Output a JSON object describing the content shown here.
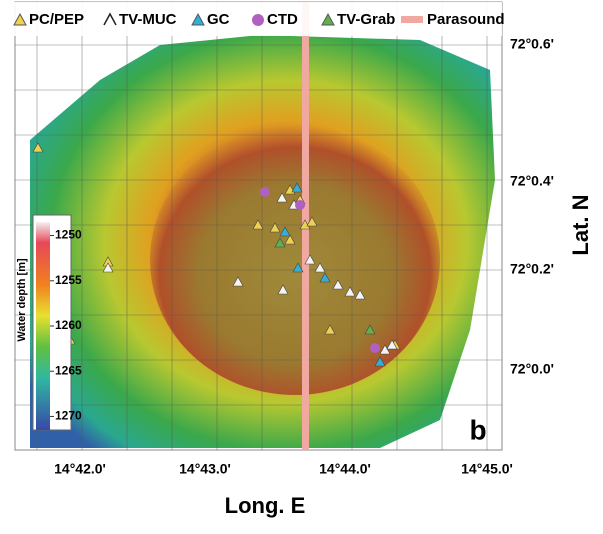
{
  "legend": [
    "PC/PEP",
    "TV-MUC",
    "GC",
    "CTD",
    "TV-Grab",
    "Parasound"
  ],
  "lat_ticks": [
    "72°0.6'",
    "72°0.4'",
    "72°0.2'",
    "72°0.0'"
  ],
  "lon_ticks": [
    "14°42.0'",
    "14°43.0'",
    "14°44.0'",
    "14°45.0'"
  ],
  "x_label": "Long. E",
  "y_label": "Lat. N",
  "panel_label": "b",
  "colorbar": {
    "title": "Water depth [m]",
    "range": [
      1248.5,
      1271.5
    ],
    "ticks": [
      1250,
      1255,
      1260,
      1265,
      1270
    ]
  }
}
